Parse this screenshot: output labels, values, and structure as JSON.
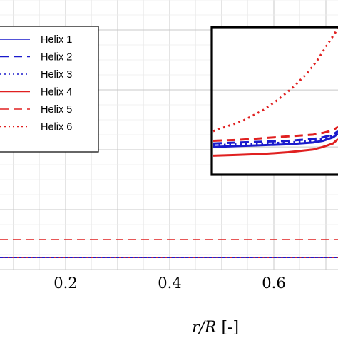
{
  "chart_data": {
    "type": "line",
    "xlabel_var": "r/R",
    "xlabel_unit": "[-]",
    "xticks": [
      0.2,
      0.4,
      0.6
    ],
    "xtick_labels": [
      "0.2",
      "0.4",
      "0.6"
    ],
    "grid": true,
    "legend_position": "top-left",
    "series": [
      {
        "name": "Helix 1",
        "color": "#1a1acc",
        "style": "solid",
        "x": [
          0.0,
          0.75
        ],
        "y": [
          0.02,
          0.02
        ]
      },
      {
        "name": "Helix 2",
        "color": "#1a1acc",
        "style": "dashed",
        "x": [
          0.0,
          0.75
        ],
        "y": [
          0.02,
          0.02
        ]
      },
      {
        "name": "Helix 3",
        "color": "#1a1acc",
        "style": "dotted",
        "x": [
          0.0,
          0.75
        ],
        "y": [
          0.02,
          0.02
        ]
      },
      {
        "name": "Helix 4",
        "color": "#e02020",
        "style": "solid",
        "x": [
          0.0,
          0.75
        ],
        "y": [
          0.02,
          0.02
        ]
      },
      {
        "name": "Helix 5",
        "color": "#e02020",
        "style": "dashed",
        "x": [
          0.0,
          0.75
        ],
        "y": [
          0.05,
          0.05
        ]
      },
      {
        "name": "Helix 6",
        "color": "#e02020",
        "style": "dotted",
        "x": [
          0.0,
          0.75
        ],
        "y": [
          0.02,
          0.02
        ]
      }
    ],
    "inset": {
      "series": [
        {
          "name": "Helix 1",
          "color": "#1a1acc",
          "style": "solid",
          "x": [
            0.5,
            0.55,
            0.6,
            0.65,
            0.7,
            0.72,
            0.74,
            0.75
          ],
          "y": [
            0.3,
            0.31,
            0.32,
            0.33,
            0.35,
            0.37,
            0.41,
            0.45
          ]
        },
        {
          "name": "Helix 2",
          "color": "#1a1acc",
          "style": "dashed",
          "x": [
            0.5,
            0.55,
            0.6,
            0.65,
            0.7,
            0.72,
            0.74,
            0.75
          ],
          "y": [
            0.34,
            0.35,
            0.36,
            0.37,
            0.39,
            0.41,
            0.44,
            0.48
          ]
        },
        {
          "name": "Helix 3",
          "color": "#1a1acc",
          "style": "dotted",
          "x": [
            0.5,
            0.55,
            0.6,
            0.65,
            0.7,
            0.72,
            0.74,
            0.75
          ],
          "y": [
            0.32,
            0.33,
            0.34,
            0.35,
            0.37,
            0.39,
            0.43,
            0.47
          ]
        },
        {
          "name": "Helix 4",
          "color": "#e02020",
          "style": "solid",
          "x": [
            0.5,
            0.55,
            0.6,
            0.65,
            0.7,
            0.72,
            0.74,
            0.75
          ],
          "y": [
            0.2,
            0.21,
            0.22,
            0.24,
            0.27,
            0.3,
            0.34,
            0.39
          ]
        },
        {
          "name": "Helix 5",
          "color": "#e02020",
          "style": "dashed",
          "x": [
            0.5,
            0.55,
            0.6,
            0.65,
            0.7,
            0.72,
            0.74,
            0.75
          ],
          "y": [
            0.37,
            0.38,
            0.4,
            0.42,
            0.44,
            0.46,
            0.49,
            0.53
          ]
        },
        {
          "name": "Helix 6",
          "color": "#e02020",
          "style": "dotted",
          "x": [
            0.5,
            0.53,
            0.56,
            0.6,
            0.63,
            0.66,
            0.69,
            0.71,
            0.73,
            0.75
          ],
          "y": [
            0.48,
            0.54,
            0.6,
            0.72,
            0.84,
            0.98,
            1.15,
            1.3,
            1.48,
            1.65
          ]
        }
      ]
    }
  }
}
